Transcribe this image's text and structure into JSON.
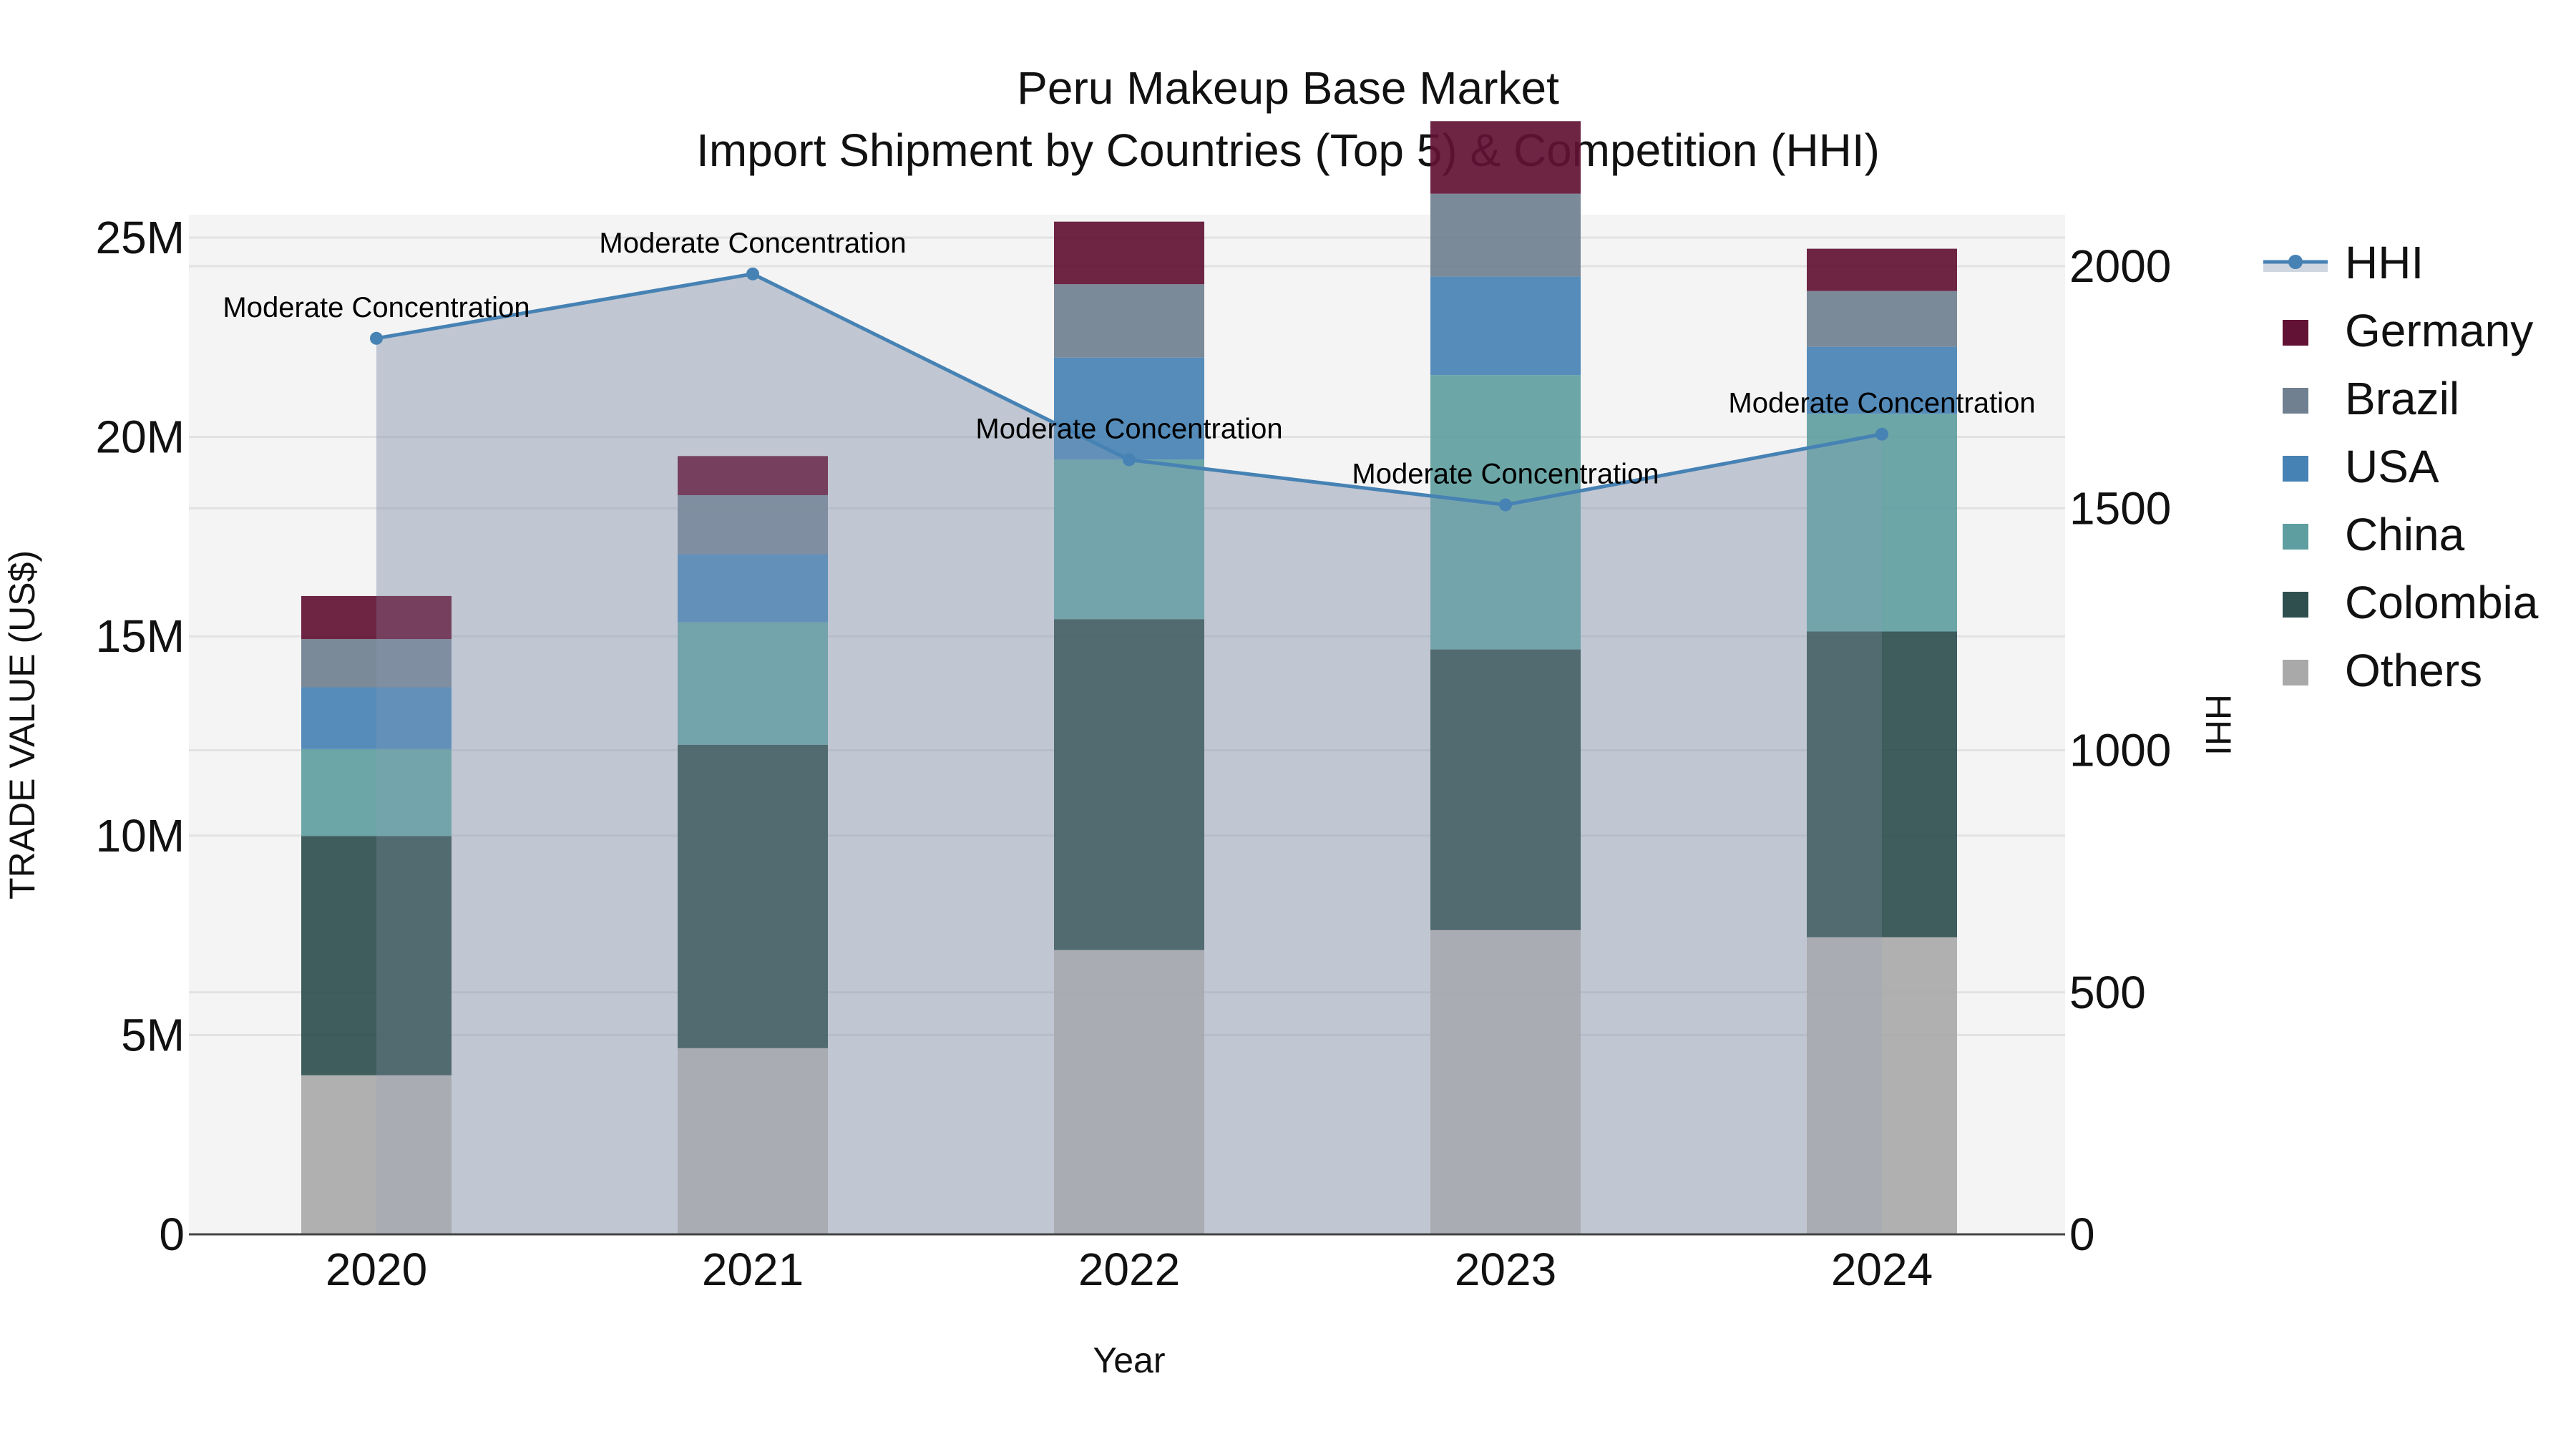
{
  "chart_data": {
    "type": "bar",
    "title": "Peru Makeup Base Market",
    "subtitle": "Import Shipment by Countries (Top 5) & Competition (HHI)",
    "xlabel": "Year",
    "ylabel": "TRADE VALUE (US$)",
    "y2label": "HHI",
    "categories": [
      "2020",
      "2021",
      "2022",
      "2023",
      "2024"
    ],
    "ylim": [
      0,
      29000000
    ],
    "y2lim": [
      0,
      2100
    ],
    "yticks": [
      0,
      5000000,
      10000000,
      15000000,
      20000000,
      25000000
    ],
    "ytick_labels": [
      "0",
      "5M",
      "10M",
      "15M",
      "20M",
      "25M"
    ],
    "y2ticks": [
      0,
      500,
      1000,
      1500,
      2000
    ],
    "y2tick_labels": [
      "0",
      "500",
      "1000",
      "1500",
      "2000"
    ],
    "stacked": true,
    "series": [
      {
        "name": "Others",
        "color": "#a9a9a9",
        "values": [
          3990000,
          4670000,
          7130000,
          7630000,
          7450000
        ]
      },
      {
        "name": "Colombia",
        "color": "#2f4f4f",
        "values": [
          6000000,
          7610000,
          8300000,
          7040000,
          7670000
        ]
      },
      {
        "name": "China",
        "color": "#5f9ea0",
        "values": [
          2180000,
          3070000,
          4000000,
          6880000,
          5460000
        ]
      },
      {
        "name": "USA",
        "color": "#4682b4",
        "values": [
          1550000,
          1710000,
          2560000,
          2470000,
          1680000
        ]
      },
      {
        "name": "Brazil",
        "color": "#708090",
        "values": [
          1210000,
          1480000,
          1840000,
          2080000,
          1400000
        ]
      },
      {
        "name": "Germany",
        "color": "#621234",
        "values": [
          1080000,
          980000,
          1570000,
          1820000,
          1060000
        ]
      }
    ],
    "line_series": {
      "name": "HHI",
      "axis": "y2",
      "color": "#4682b4",
      "fill": "tozeroy",
      "values": [
        1851,
        1984,
        1600,
        1507,
        1653
      ],
      "annotations": [
        "Moderate Concentration",
        "Moderate Concentration",
        "Moderate Concentration",
        "Moderate Concentration",
        "Moderate Concentration"
      ]
    },
    "legend": {
      "position": "right",
      "entries": [
        "HHI",
        "Germany",
        "Brazil",
        "USA",
        "China",
        "Colombia",
        "Others"
      ]
    },
    "grid": true
  }
}
